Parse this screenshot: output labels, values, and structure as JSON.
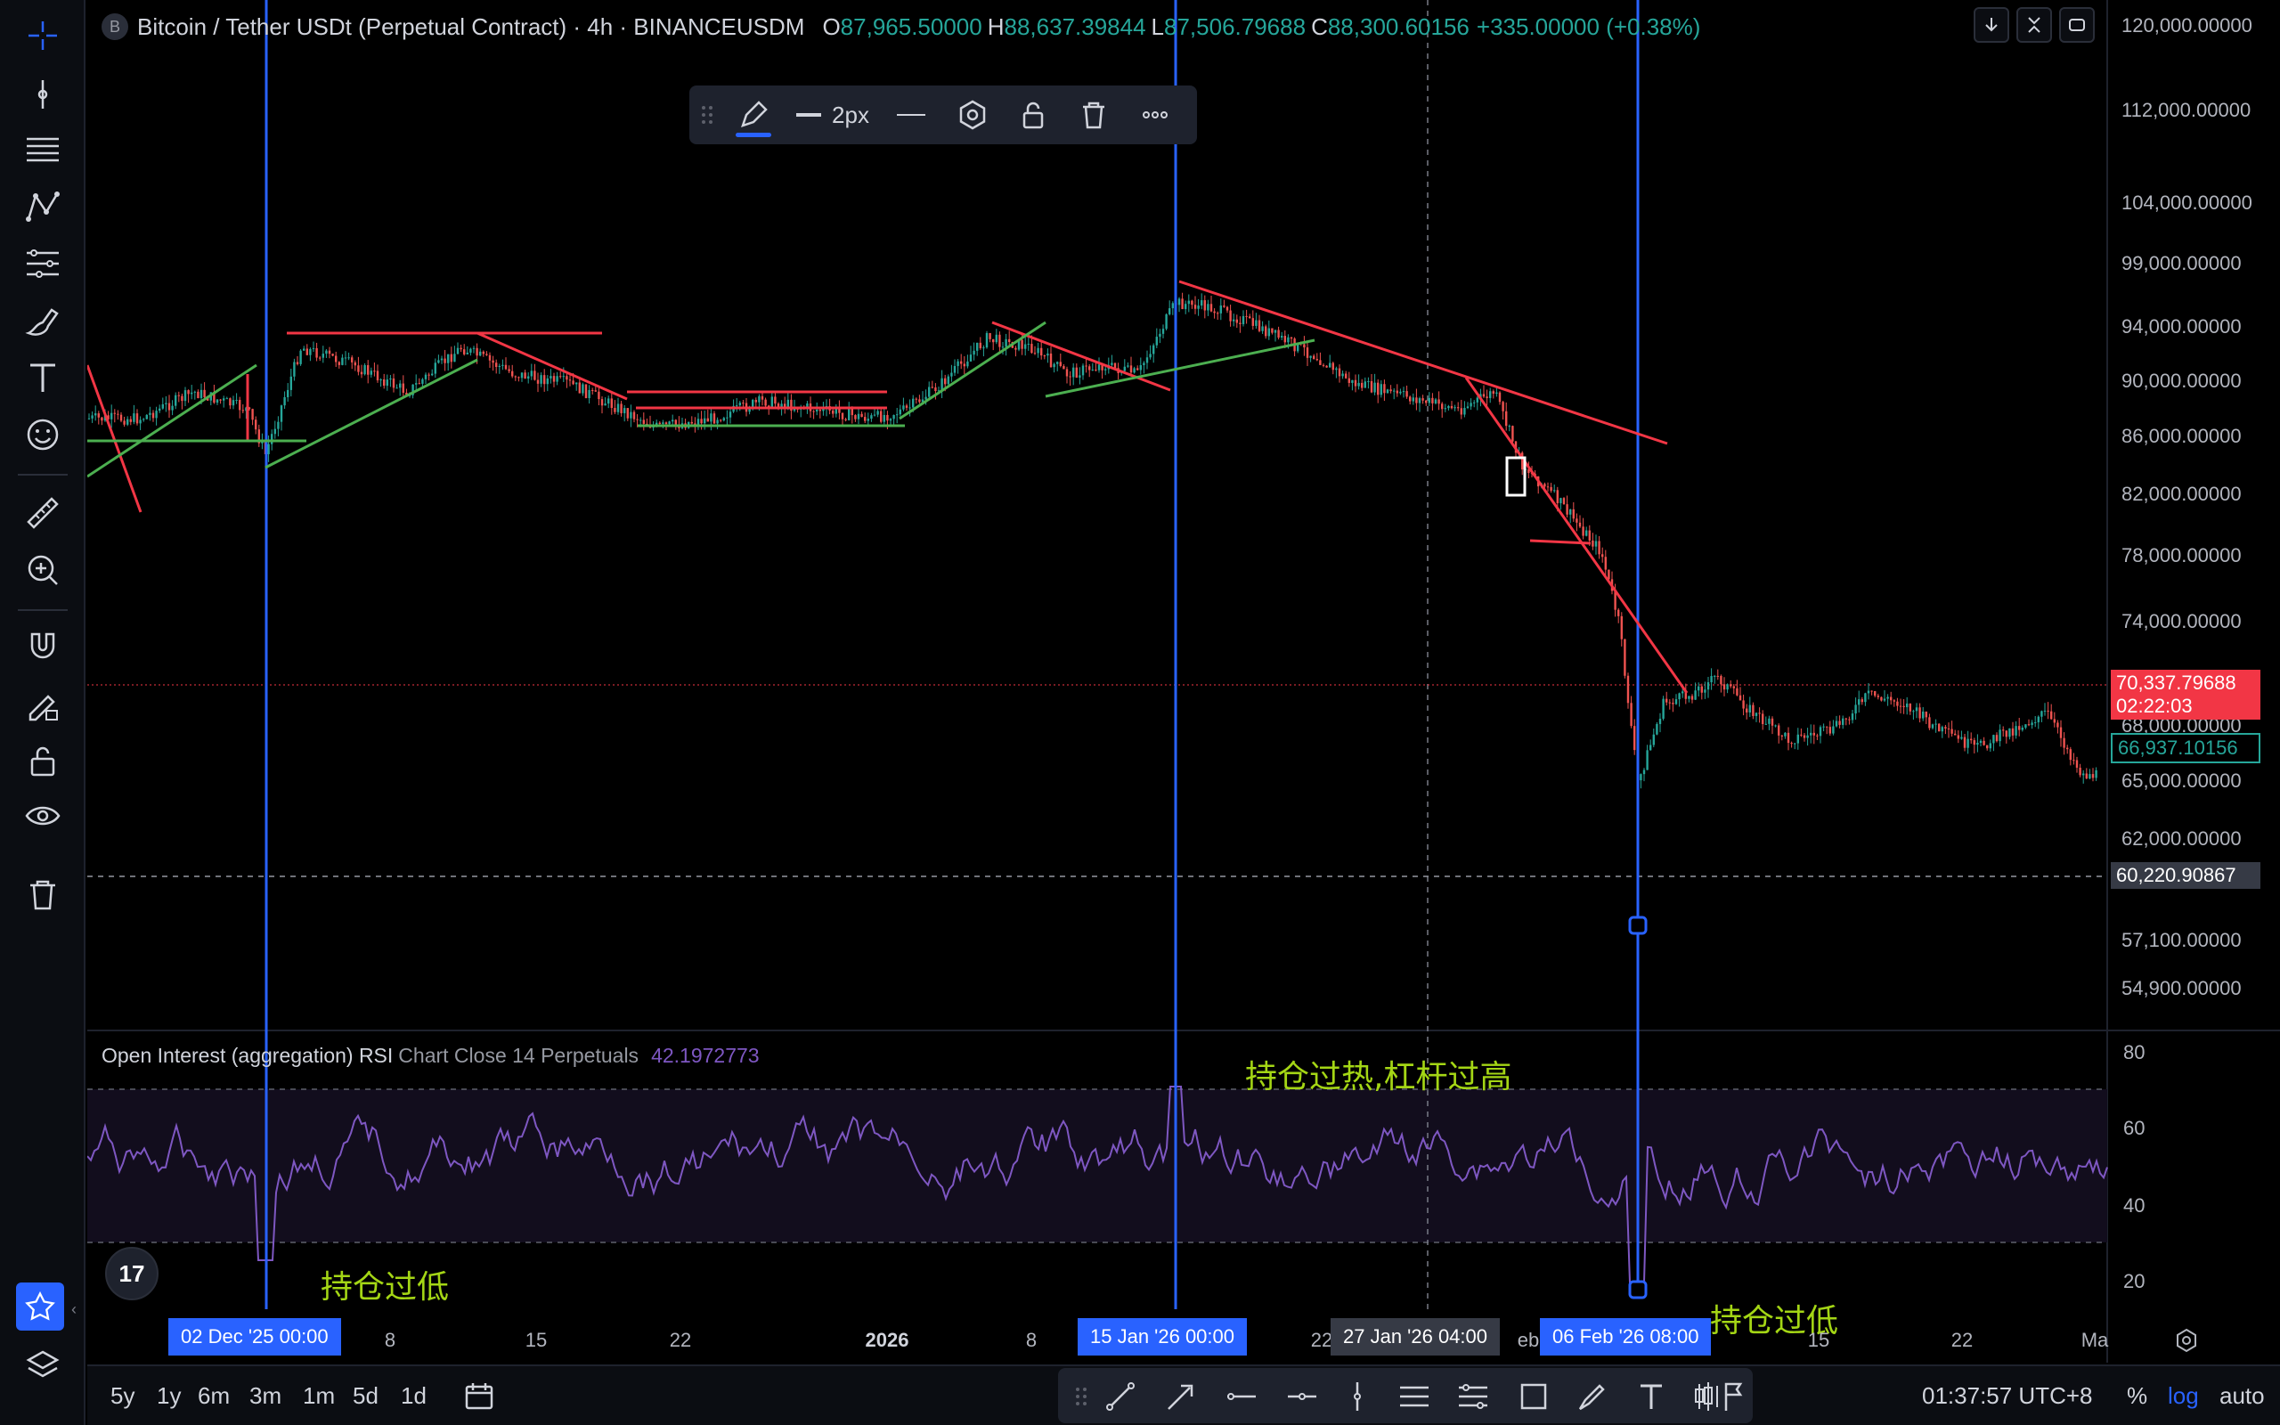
{
  "header": {
    "symbol_badge": "B",
    "title": "Bitcoin / Tether USDt (Perpetual Contract) · 4h · BINANCEUSDM",
    "open_k": "O",
    "open_v": "87,965.50000",
    "high_k": "H",
    "high_v": "88,637.39844",
    "low_k": "L",
    "low_v": "87,506.79688",
    "close_k": "C",
    "close_v": "88,300.60156",
    "change": "+335.00000 (+0.38%)",
    "buttons": [
      "arrow-down-icon",
      "collapse-icon",
      "fullscreen-icon"
    ]
  },
  "draw_toolbar": {
    "width_label": "2px",
    "tools": [
      "drag-handle-icon",
      "pencil-icon",
      "line-width-icon",
      "line-style-icon",
      "settings-hexagon-icon",
      "unlock-icon",
      "trash-icon",
      "more-icon"
    ]
  },
  "left_toolbar": {
    "tools": [
      "crosshair-icon",
      "trend-line-icon",
      "fib-retracement-icon",
      "pattern-icon",
      "forecast-icon",
      "brush-icon",
      "text-icon",
      "emoji-icon",
      "ruler-icon",
      "zoom-in-icon",
      "magnet-icon",
      "lock-drawing-icon",
      "unlock-icon",
      "eye-icon",
      "trash-icon",
      "star-icon",
      "layers-icon"
    ]
  },
  "price_axis": {
    "ticks": [
      "120,000.00000",
      "112,000.00000",
      "104,000.00000",
      "99,000.00000",
      "94,000.00000",
      "90,000.00000",
      "86,000.00000",
      "82,000.00000",
      "78,000.00000",
      "74,000.00000",
      "68,000.00000",
      "65,000.00000",
      "62,000.00000",
      "57,100.00000",
      "54,900.00000"
    ],
    "last_price": "70,337.79688",
    "countdown": "02:22:03",
    "ref_price": "66,937.10156",
    "crosshair_price": "60,220.90867",
    "colors": {
      "last": "#f23645",
      "ref": "#26a69a",
      "crosshair": "#363a45"
    }
  },
  "indicator": {
    "name": "Open Interest (aggregation) RSI",
    "params": "Chart Close 14 Perpetuals",
    "value": "42.1972773",
    "ticks": [
      "80",
      "60",
      "40",
      "20"
    ],
    "color": "#7e57c2"
  },
  "annotations": {
    "high_label": "持仓过热,杠杆过高",
    "low_label_1": "持仓过低",
    "low_label_2": "持仓过低",
    "color": "#a4d615"
  },
  "time_axis": {
    "ticks": [
      "8",
      "15",
      "22",
      "2026",
      "8",
      "22",
      "eb",
      "15",
      "22",
      "Ma"
    ],
    "badges": [
      "02 Dec '25   00:00",
      "15 Jan '26   00:00",
      "06 Feb '26   08:00"
    ],
    "crosshair_badge": "27 Jan '26   04:00"
  },
  "bottom_bar": {
    "ranges": [
      "5y",
      "1y",
      "6m",
      "3m",
      "1m",
      "5d",
      "1d"
    ],
    "time": "01:37:57 UTC+8",
    "pct": "%",
    "log": "log",
    "auto": "auto",
    "draw_tools": [
      "trend-line-icon",
      "arrow-icon",
      "horizontal-ray-icon",
      "horizontal-line-icon",
      "vertical-line-icon",
      "parallel-channel-icon",
      "regression-icon",
      "rectangle-icon",
      "brush-icon",
      "text-icon",
      "candles-icon",
      "flag-icon"
    ]
  },
  "tv_logo": "17"
}
